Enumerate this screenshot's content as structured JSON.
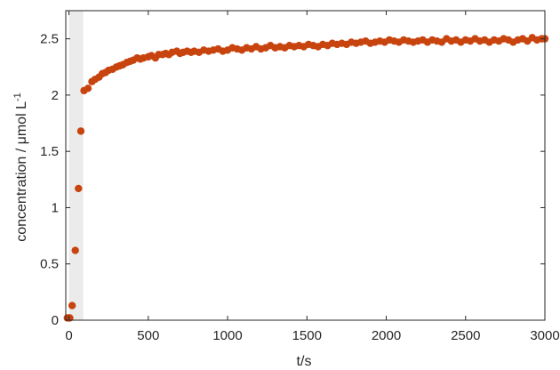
{
  "chart_data": {
    "type": "scatter",
    "xlabel": "t/s",
    "ylabel": "concentration  / μmol  L",
    "ylabel_superscript": "-1",
    "xlim": [
      -20,
      3000
    ],
    "ylim": [
      0,
      2.75
    ],
    "x_ticks": [
      0,
      500,
      1000,
      1500,
      2000,
      2500,
      3000
    ],
    "y_ticks": [
      0,
      0.5,
      1,
      1.5,
      2,
      2.5
    ],
    "x_tick_labels": [
      "0",
      "500",
      "1000",
      "1500",
      "2000",
      "2500",
      "3000"
    ],
    "y_tick_labels": [
      "0",
      "0.5",
      "1",
      "1.5",
      "2",
      "2.5"
    ],
    "grid": false,
    "shaded_region": {
      "x_start": 0,
      "x_end": 90,
      "color": "#ebebeb"
    },
    "marker_color": "#c8440f",
    "series": [
      {
        "x": [
          -10,
          0,
          5,
          20,
          40,
          60,
          75,
          95,
          120,
          145,
          165,
          190,
          210,
          230,
          250,
          275,
          300,
          320,
          340,
          365,
          385,
          405,
          430,
          450,
          470,
          500,
          520,
          545,
          565,
          590,
          610,
          630,
          650,
          680,
          700,
          720,
          745,
          770,
          790,
          820,
          850,
          880,
          910,
          940,
          970,
          1000,
          1030,
          1060,
          1090,
          1120,
          1150,
          1180,
          1210,
          1240,
          1270,
          1300,
          1330,
          1360,
          1390,
          1420,
          1450,
          1480,
          1510,
          1540,
          1570,
          1600,
          1630,
          1660,
          1690,
          1720,
          1750,
          1780,
          1810,
          1840,
          1870,
          1900,
          1930,
          1960,
          1990,
          2020,
          2050,
          2080,
          2110,
          2140,
          2170,
          2200,
          2230,
          2260,
          2290,
          2320,
          2350,
          2380,
          2410,
          2440,
          2470,
          2500,
          2530,
          2560,
          2590,
          2620,
          2650,
          2680,
          2710,
          2740,
          2770,
          2800,
          2830,
          2860,
          2890,
          2920,
          2950,
          2980,
          3000
        ],
        "values": [
          0.02,
          0.02,
          0.02,
          0.13,
          0.62,
          1.17,
          1.68,
          2.04,
          2.06,
          2.12,
          2.14,
          2.16,
          2.19,
          2.2,
          2.22,
          2.23,
          2.25,
          2.26,
          2.27,
          2.29,
          2.3,
          2.31,
          2.33,
          2.32,
          2.33,
          2.34,
          2.35,
          2.33,
          2.36,
          2.36,
          2.37,
          2.36,
          2.38,
          2.39,
          2.37,
          2.38,
          2.39,
          2.38,
          2.39,
          2.38,
          2.4,
          2.39,
          2.4,
          2.41,
          2.39,
          2.4,
          2.42,
          2.41,
          2.4,
          2.42,
          2.41,
          2.43,
          2.41,
          2.42,
          2.44,
          2.42,
          2.43,
          2.42,
          2.44,
          2.43,
          2.44,
          2.43,
          2.45,
          2.44,
          2.43,
          2.45,
          2.44,
          2.46,
          2.45,
          2.46,
          2.45,
          2.47,
          2.46,
          2.47,
          2.48,
          2.46,
          2.47,
          2.48,
          2.47,
          2.49,
          2.48,
          2.47,
          2.49,
          2.48,
          2.47,
          2.48,
          2.49,
          2.47,
          2.49,
          2.48,
          2.47,
          2.5,
          2.48,
          2.49,
          2.47,
          2.49,
          2.48,
          2.5,
          2.48,
          2.49,
          2.47,
          2.49,
          2.48,
          2.5,
          2.49,
          2.47,
          2.49,
          2.5,
          2.48,
          2.51,
          2.49,
          2.5,
          2.5
        ]
      }
    ]
  }
}
